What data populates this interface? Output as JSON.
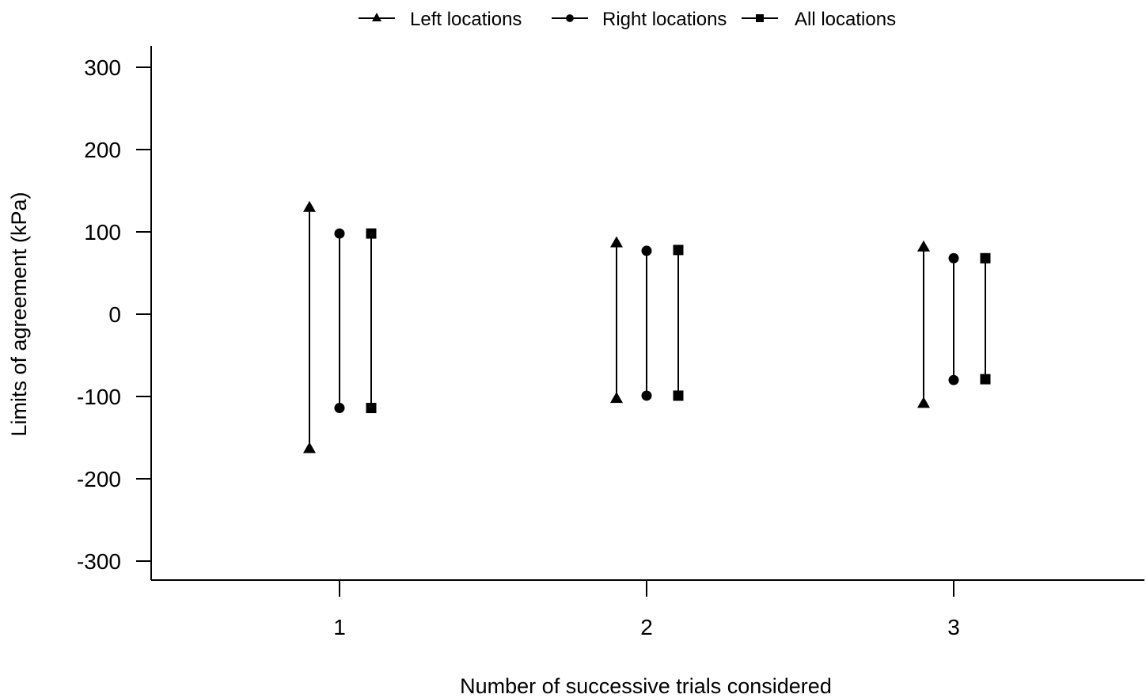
{
  "chart_data": {
    "type": "range",
    "xlabel": "Number of successive trials considered",
    "ylabel": "Limits of agreement (kPa)",
    "categories": [
      "1",
      "2",
      "3"
    ],
    "ylim": [
      -320,
      325
    ],
    "yticks": [
      300,
      200,
      100,
      0,
      -100,
      -200,
      -300
    ],
    "legend_position": "top",
    "series": [
      {
        "name": "Left locations",
        "marker": "triangle",
        "upper": [
          130,
          87,
          82
        ],
        "lower": [
          -163,
          -102,
          -108
        ]
      },
      {
        "name": "Right locations",
        "marker": "circle",
        "upper": [
          98,
          77,
          68
        ],
        "lower": [
          -114,
          -99,
          -80
        ]
      },
      {
        "name": "All locations",
        "marker": "square",
        "upper": [
          98,
          78,
          68
        ],
        "lower": [
          -114,
          -99,
          -79
        ]
      }
    ]
  }
}
